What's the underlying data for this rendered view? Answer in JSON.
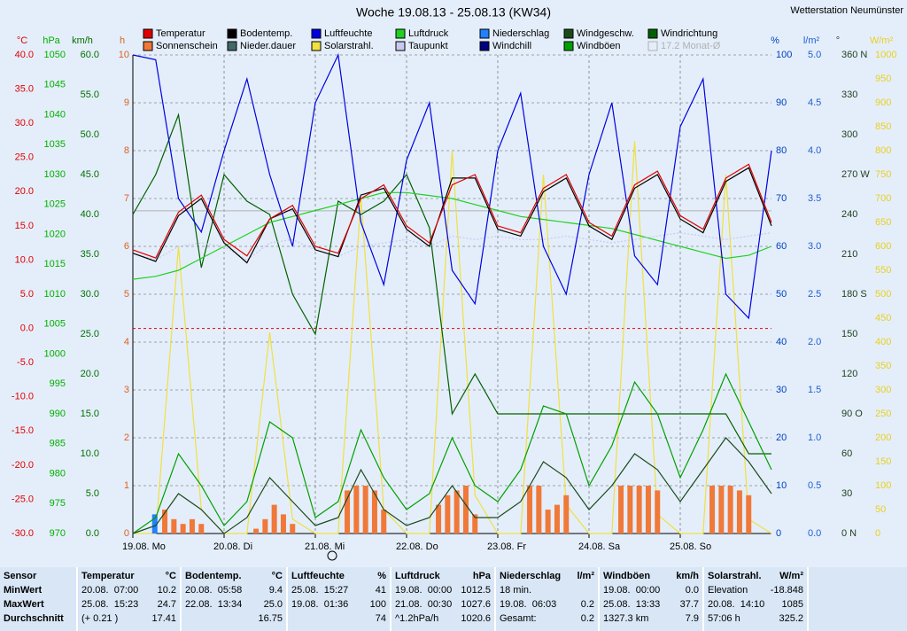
{
  "chart_data": {
    "type": "multi",
    "title": "Woche 19.08.13 - 25.08.13 (KW34)",
    "station": "Wetterstation Neumünster",
    "legend": [
      {
        "name": "Temperatur",
        "color": "#e00000"
      },
      {
        "name": "Bodentemp.",
        "color": "#000000"
      },
      {
        "name": "Luftfeuchte",
        "color": "#0000e0"
      },
      {
        "name": "Luftdruck",
        "color": "#20d020"
      },
      {
        "name": "Niederschlag",
        "color": "#2080ff"
      },
      {
        "name": "Windgeschw.",
        "color": "#1a4a1a"
      },
      {
        "name": "Windrichtung",
        "color": "#006000"
      },
      {
        "name": "Sonnenschein",
        "color": "#f07838"
      },
      {
        "name": "Nieder.dauer",
        "color": "#406868"
      },
      {
        "name": "Solarstrahl.",
        "color": "#f0e040"
      },
      {
        "name": "Taupunkt",
        "color": "#c8c8f0"
      },
      {
        "name": "Windchill",
        "color": "#000080"
      },
      {
        "name": "Windböen",
        "color": "#00a000"
      },
      {
        "name": "17.2 Monat-Ø",
        "color": "#b0b0b0"
      }
    ],
    "monthly_avg": {
      "value": 17.2,
      "legend": 13,
      "axis": "temp"
    },
    "xlim": [
      0,
      7
    ],
    "xticks": [
      {
        "value": 0,
        "label": "19.08.  Mo"
      },
      {
        "value": 1,
        "label": "20.08.  Di"
      },
      {
        "value": 2,
        "label": "21.08.  Mi"
      },
      {
        "value": 3,
        "label": "22.08.  Do"
      },
      {
        "value": 4,
        "label": "23.08.  Fr"
      },
      {
        "value": 5,
        "label": "24.08.  Sa"
      },
      {
        "value": 6,
        "label": "25.08.  So"
      }
    ],
    "axes": {
      "temp": {
        "unit": "°C",
        "color": "#e00000",
        "lim": [
          -30,
          40
        ],
        "ticks": [
          {
            "value": 40,
            "label": "40.0"
          },
          {
            "value": 35,
            "label": "35.0"
          },
          {
            "value": 30,
            "label": "30.0"
          },
          {
            "value": 25,
            "label": "25.0"
          },
          {
            "value": 20,
            "label": "20.0"
          },
          {
            "value": 15,
            "label": "15.0"
          },
          {
            "value": 10,
            "label": "10.0"
          },
          {
            "value": 5,
            "label": "5.0"
          },
          {
            "value": 0,
            "label": "0.0"
          },
          {
            "value": -5,
            "label": "-5.0"
          },
          {
            "value": -10,
            "label": "-10.0"
          },
          {
            "value": -15,
            "label": "-15.0"
          },
          {
            "value": -20,
            "label": "-20.0"
          },
          {
            "value": -25,
            "label": "-25.0"
          },
          {
            "value": -30,
            "label": "-30.0"
          }
        ]
      },
      "press": {
        "unit": "hPa",
        "color": "#00b000",
        "lim": [
          970,
          1050
        ],
        "ticks": [
          1050,
          1045,
          1040,
          1035,
          1030,
          1025,
          1020,
          1015,
          1010,
          1005,
          1000,
          995,
          990,
          985,
          980,
          975,
          970
        ]
      },
      "wind": {
        "unit": "km/h",
        "color": "#007000",
        "lim": [
          0,
          60
        ],
        "ticks": [
          {
            "value": 60,
            "label": "60.0"
          },
          {
            "value": 55,
            "label": "55.0"
          },
          {
            "value": 50,
            "label": "50.0"
          },
          {
            "value": 45,
            "label": "45.0"
          },
          {
            "value": 40,
            "label": "40.0"
          },
          {
            "value": 35,
            "label": "35.0"
          },
          {
            "value": 30,
            "label": "30.0"
          },
          {
            "value": 25,
            "label": "25.0"
          },
          {
            "value": 20,
            "label": "20.0"
          },
          {
            "value": 15,
            "label": "15.0"
          },
          {
            "value": 10,
            "label": "10.0"
          },
          {
            "value": 5,
            "label": "5.0"
          },
          {
            "value": 0,
            "label": "0.0"
          }
        ]
      },
      "sun": {
        "unit": "h",
        "color": "#e06020",
        "lim": [
          0,
          10
        ],
        "ticks": [
          10,
          9,
          8,
          7,
          6,
          5,
          4,
          3,
          2,
          1,
          0
        ]
      },
      "hum": {
        "unit": "%",
        "color": "#0040c0",
        "lim": [
          0,
          100
        ],
        "ticks": [
          100,
          90,
          80,
          70,
          60,
          50,
          40,
          30,
          20,
          10,
          0
        ]
      },
      "rain": {
        "unit": "l/m²",
        "color": "#2060d0",
        "lim": [
          0,
          5
        ],
        "ticks": [
          {
            "value": 5,
            "label": "5.0"
          },
          4.5,
          {
            "value": 4,
            "label": "4.0"
          },
          3.5,
          {
            "value": 3,
            "label": "3.0"
          },
          2.5,
          {
            "value": 2,
            "label": "2.0"
          },
          1.5,
          {
            "value": 1,
            "label": "1.0"
          },
          0.5,
          {
            "value": 0,
            "label": "0.0"
          }
        ]
      },
      "dir": {
        "unit": "°",
        "color": "#204020",
        "lim": [
          0,
          360
        ],
        "ticks": [
          {
            "value": 360,
            "label": "360 N"
          },
          330,
          300,
          {
            "value": 270,
            "label": "270 W"
          },
          240,
          210,
          {
            "value": 180,
            "label": "180 S"
          },
          150,
          120,
          {
            "value": 90,
            "label": "90 O"
          },
          60,
          30,
          {
            "value": 0,
            "label": "0 N"
          }
        ]
      },
      "solar": {
        "unit": "W/m²",
        "color": "#e8d020",
        "lim": [
          0,
          1000
        ],
        "ticks": [
          1000,
          950,
          900,
          850,
          800,
          750,
          700,
          650,
          600,
          550,
          500,
          450,
          400,
          350,
          300,
          250,
          200,
          150,
          100,
          50,
          0
        ]
      }
    },
    "x": [
      0,
      0.25,
      0.5,
      0.75,
      1,
      1.25,
      1.5,
      1.75,
      2,
      2.25,
      2.5,
      2.75,
      3,
      3.25,
      3.5,
      3.75,
      4,
      4.25,
      4.5,
      4.75,
      5,
      5.25,
      5.5,
      5.75,
      6,
      6.25,
      6.5,
      6.75,
      7
    ],
    "series": [
      {
        "legend": 9,
        "axis": "solar",
        "kind": "line",
        "values": [
          0,
          0,
          600,
          50,
          0,
          0,
          420,
          30,
          0,
          0,
          700,
          50,
          0,
          0,
          800,
          80,
          0,
          0,
          750,
          60,
          0,
          0,
          820,
          40,
          0,
          0,
          750,
          30,
          0
        ]
      },
      {
        "legend": 7,
        "axis": "sun",
        "kind": "bar",
        "x": [
          0.35,
          0.45,
          0.55,
          0.65,
          0.75,
          1.35,
          1.45,
          1.55,
          1.65,
          1.75,
          2.35,
          2.45,
          2.55,
          2.65,
          2.75,
          3.35,
          3.45,
          3.55,
          3.65,
          3.75,
          4.35,
          4.45,
          4.55,
          4.65,
          4.75,
          5.35,
          5.45,
          5.55,
          5.65,
          5.75,
          6.35,
          6.45,
          6.55,
          6.65,
          6.75
        ],
        "values": [
          0.5,
          0.3,
          0.2,
          0.3,
          0.2,
          0.1,
          0.3,
          0.6,
          0.4,
          0.2,
          0.9,
          1,
          1,
          0.9,
          0.5,
          0.6,
          0.8,
          0.9,
          1,
          0.4,
          1,
          1,
          0.5,
          0.6,
          0.8,
          1,
          1,
          1,
          1,
          0.9,
          1,
          1,
          1,
          0.9,
          0.8
        ]
      },
      {
        "legend": 4,
        "axis": "rain",
        "kind": "bar",
        "x": [
          0.24
        ],
        "values": [
          0.2
        ]
      },
      {
        "legend": 6,
        "axis": "dir",
        "kind": "line",
        "values": [
          240,
          270,
          315,
          200,
          270,
          250,
          240,
          180,
          150,
          250,
          240,
          250,
          270,
          230,
          90,
          120,
          90,
          90,
          90,
          90,
          90,
          90,
          90,
          90,
          90,
          90,
          90,
          60,
          60
        ]
      },
      {
        "legend": 12,
        "axis": "wind",
        "kind": "line",
        "values": [
          0,
          2,
          10,
          6,
          1,
          4,
          14,
          12,
          2,
          4,
          13,
          7,
          3,
          5,
          12,
          6,
          4,
          8,
          16,
          15,
          6,
          11,
          19,
          15,
          7,
          13,
          20,
          14,
          8
        ]
      },
      {
        "legend": 5,
        "axis": "wind",
        "kind": "line",
        "values": [
          0,
          1,
          5,
          3,
          0,
          2,
          7,
          4,
          1,
          2,
          8,
          3,
          1,
          2,
          6,
          2,
          2,
          4,
          9,
          7,
          3,
          6,
          10,
          8,
          4,
          8,
          12,
          9,
          5
        ]
      },
      {
        "legend": 3,
        "axis": "press",
        "kind": "line",
        "values": [
          1012.5,
          1013,
          1014,
          1016,
          1018,
          1020,
          1022,
          1023,
          1024,
          1025,
          1026,
          1027,
          1027,
          1026.5,
          1026,
          1025,
          1024,
          1023,
          1022.5,
          1022,
          1021.5,
          1021,
          1020,
          1019,
          1018,
          1017,
          1016,
          1016.5,
          1018
        ]
      },
      {
        "legend": 10,
        "axis": "temp",
        "kind": "dash",
        "values": [
          11,
          10,
          12,
          12.5,
          12,
          10,
          12.5,
          13,
          11.5,
          10.5,
          12,
          12.5,
          13,
          12,
          13.5,
          13,
          13.5,
          13,
          13,
          13.5,
          13,
          12.5,
          13,
          13.5,
          14,
          13.5,
          13,
          13.5,
          14
        ]
      },
      {
        "legend": 2,
        "axis": "hum",
        "kind": "line",
        "values": [
          100,
          99,
          70,
          63,
          80,
          95,
          75,
          60,
          90,
          100,
          65,
          52,
          78,
          90,
          55,
          48,
          80,
          92,
          60,
          50,
          75,
          90,
          58,
          52,
          85,
          95,
          50,
          45,
          80
        ]
      },
      {
        "legend": 1,
        "axis": "temp",
        "kind": "line",
        "values": [
          11,
          9.8,
          16.5,
          19,
          12.5,
          9.6,
          16,
          17.5,
          11.5,
          10.5,
          19.5,
          20.5,
          14.5,
          12,
          22,
          22,
          14.5,
          13.5,
          20,
          22,
          15,
          13,
          20.5,
          22.5,
          16,
          14,
          21.5,
          23.5,
          15
        ]
      },
      {
        "legend": 0,
        "axis": "temp",
        "kind": "line",
        "values": [
          11.5,
          10.3,
          17,
          19.5,
          13,
          10.6,
          16,
          18,
          12,
          11,
          19,
          21,
          15,
          12.5,
          21,
          22.5,
          15,
          14,
          20.5,
          22.5,
          15.5,
          13.5,
          21,
          23,
          16.5,
          14.5,
          22,
          24,
          15.5
        ]
      }
    ]
  },
  "stats": {
    "labels": [
      "Sensor",
      "MinWert",
      "MaxWert",
      "Durchschnitt"
    ],
    "columns": [
      {
        "header": "Temperatur",
        "unit": "°C",
        "rows": [
          {
            "l": "20.08.  07:00",
            "r": "10.2"
          },
          {
            "l": "25.08.  15:23",
            "r": "24.7"
          },
          {
            "l": "(+ 0.21 )",
            "r": "17.41"
          }
        ]
      },
      {
        "header": "Bodentemp.",
        "unit": "°C",
        "rows": [
          {
            "l": "20.08.  05:58",
            "r": "9.4"
          },
          {
            "l": "22.08.  13:34",
            "r": "25.0"
          },
          {
            "r": "16.75"
          }
        ]
      },
      {
        "header": "Luftfeuchte",
        "unit": "%",
        "rows": [
          {
            "l": "25.08.  15:27",
            "r": "41"
          },
          {
            "l": "19.08.  01:36",
            "r": "100"
          },
          {
            "r": "74"
          }
        ]
      },
      {
        "header": "Luftdruck",
        "unit": "hPa",
        "rows": [
          {
            "l": "19.08.  00:00",
            "r": "1012.5"
          },
          {
            "l": "21.08.  00:30",
            "r": "1027.6"
          },
          {
            "l": "^1.2hPa/h",
            "r": "1020.6"
          }
        ]
      },
      {
        "header": "Niederschlag",
        "unit": "l/m²",
        "rows": [
          {
            "l": "18 min."
          },
          {
            "l": "19.08.  06:03",
            "r": "0.2"
          },
          {
            "l": "Gesamt:",
            "r": "0.2"
          }
        ]
      },
      {
        "header": "Windböen",
        "unit": "km/h",
        "rows": [
          {
            "l": "19.08.  00:00",
            "r": "0.0"
          },
          {
            "l": "25.08.  13:33",
            "r": "37.7"
          },
          {
            "l": "1327.3 km",
            "r": "7.9"
          }
        ]
      },
      {
        "header": "Solarstrahl.",
        "unit": "W/m²",
        "rows": [
          {
            "l": "Elevation",
            "r": "-18.848"
          },
          {
            "l": "20.08.  14:10",
            "r": "1085"
          },
          {
            "l": "57:06 h",
            "r": "325.2"
          }
        ]
      }
    ]
  }
}
